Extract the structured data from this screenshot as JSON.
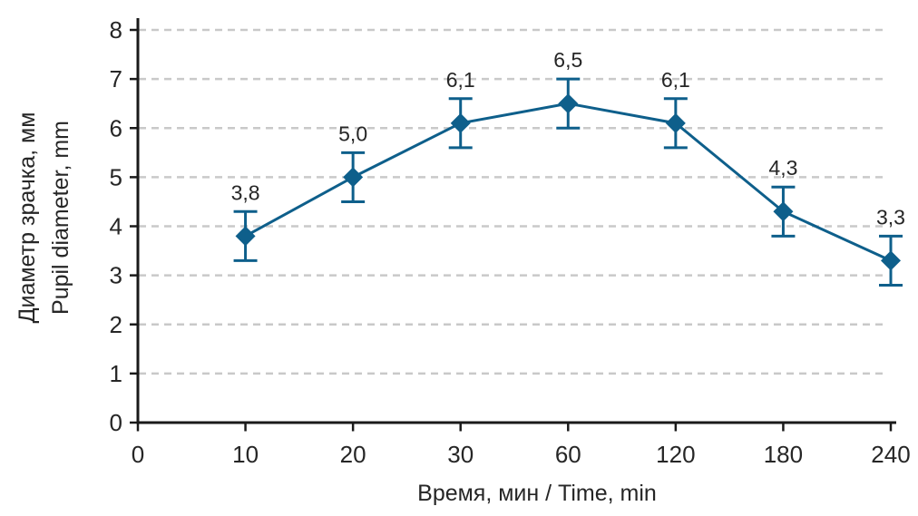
{
  "chart_data": {
    "type": "line",
    "title": "",
    "x_axis": {
      "label": "Время, мин / Time, min",
      "tick_labels": [
        "0",
        "10",
        "20",
        "30",
        "60",
        "120",
        "180",
        "240"
      ],
      "scale": "categorical-equal-spacing"
    },
    "y_axis": {
      "label_ru": "Диаметр зрачка, мм",
      "label_en": "Pupil diameter, mm",
      "ticks": [
        0,
        1,
        2,
        3,
        4,
        5,
        6,
        7,
        8
      ],
      "range": [
        0,
        8
      ]
    },
    "series": [
      {
        "name": "pupil-diameter",
        "x": [
          "10",
          "20",
          "30",
          "60",
          "120",
          "180",
          "240"
        ],
        "values": [
          3.8,
          5.0,
          6.1,
          6.5,
          6.1,
          4.3,
          3.3
        ],
        "point_labels": [
          "3,8",
          "5,0",
          "6,1",
          "6,5",
          "6,1",
          "4,3",
          "3,3"
        ],
        "error_bar": 0.5,
        "marker": "diamond",
        "color": "#0e5f8b"
      }
    ],
    "grid": {
      "horizontal": true,
      "style": "dashed",
      "color": "#c9c9c9"
    },
    "colors": {
      "axis": "#1a1a1a",
      "text": "#262626"
    },
    "legend": null
  }
}
